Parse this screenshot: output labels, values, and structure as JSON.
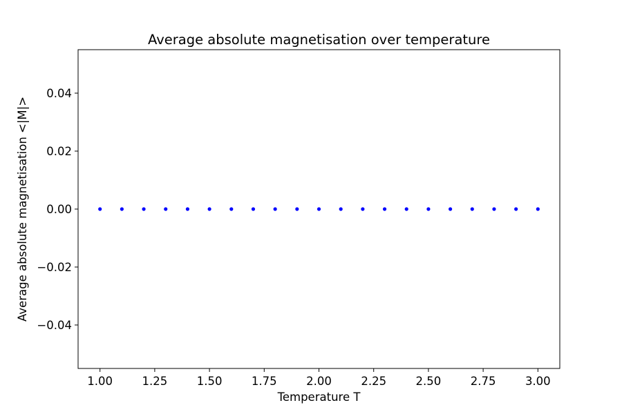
{
  "chart_data": {
    "type": "scatter",
    "title": "Average absolute magnetisation over temperature",
    "xlabel": "Temperature T",
    "ylabel": "Average absolute magnetisation <|M|>",
    "xlim": [
      0.9,
      3.1
    ],
    "ylim": [
      -0.055,
      0.055
    ],
    "xticks": [
      1.0,
      1.25,
      1.5,
      1.75,
      2.0,
      2.25,
      2.5,
      2.75,
      3.0
    ],
    "xtick_labels": [
      "1.00",
      "1.25",
      "1.50",
      "1.75",
      "2.00",
      "2.25",
      "2.50",
      "2.75",
      "3.00"
    ],
    "yticks": [
      -0.04,
      -0.02,
      0.0,
      0.02,
      0.04
    ],
    "ytick_labels": [
      "−0.04",
      "−0.02",
      "0.00",
      "0.02",
      "0.04"
    ],
    "grid": false,
    "legend": "none",
    "series": [
      {
        "color": "#0000ff",
        "marker": "circle",
        "x": [
          1.0,
          1.1,
          1.2,
          1.3,
          1.4,
          1.5,
          1.6,
          1.7,
          1.8,
          1.9,
          2.0,
          2.1,
          2.2,
          2.3,
          2.4,
          2.5,
          2.6,
          2.7,
          2.8,
          2.9,
          3.0
        ],
        "y": [
          0.0,
          0.0,
          0.0,
          0.0,
          0.0,
          0.0,
          0.0,
          0.0,
          0.0,
          0.0,
          0.0,
          0.0,
          0.0,
          0.0,
          0.0,
          0.0,
          0.0,
          0.0,
          0.0,
          0.0,
          0.0
        ]
      }
    ]
  }
}
